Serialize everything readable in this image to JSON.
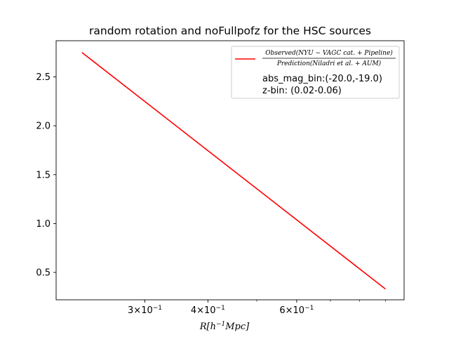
{
  "chart_data": {
    "type": "line",
    "title": "random rotation and noFullpofz for the HSC sources",
    "xlabel": "R[h^{-1}Mpc]",
    "xlabel_parts": {
      "main": "R[h",
      "exp": "−1",
      "rest": "Mpc]"
    },
    "ylabel": "",
    "xscale": "log",
    "xlim": [
      0.2,
      0.98
    ],
    "ylim": [
      0.22,
      2.87
    ],
    "grid": false,
    "legend_position": "upper right",
    "x_ticks": [
      {
        "value": 0.3,
        "mantissa": "3",
        "times": "×",
        "base": "10",
        "exp": "−1"
      },
      {
        "value": 0.4,
        "mantissa": "4",
        "times": "×",
        "base": "10",
        "exp": "−1"
      },
      {
        "value": 0.6,
        "mantissa": "6",
        "times": "×",
        "base": "10",
        "exp": "−1"
      }
    ],
    "x_minor_ticks": [
      0.5,
      0.7,
      0.8,
      0.9
    ],
    "y_ticks": [
      {
        "value": 0.5,
        "label": "0.5"
      },
      {
        "value": 1.0,
        "label": "1.0"
      },
      {
        "value": 1.5,
        "label": "1.5"
      },
      {
        "value": 2.0,
        "label": "2.0"
      },
      {
        "value": 2.5,
        "label": "2.5"
      }
    ],
    "series": [
      {
        "name": "Observed(NYU−VAGC cat. + Pipeline) / Prediction(Niladri et al. + AUM)",
        "legend_numerator": "Observed(NYU − VAGC cat. + Pipeline)",
        "legend_denominator": "Prediction(Niladri et al. + AUM)",
        "color": "#ff0000",
        "x": [
          0.225,
          0.9
        ],
        "y": [
          2.75,
          0.33
        ]
      }
    ],
    "legend_extra_lines": [
      "abs_mag_bin:(-20.0,-19.0)",
      "z-bin: (0.02-0.06)"
    ]
  }
}
